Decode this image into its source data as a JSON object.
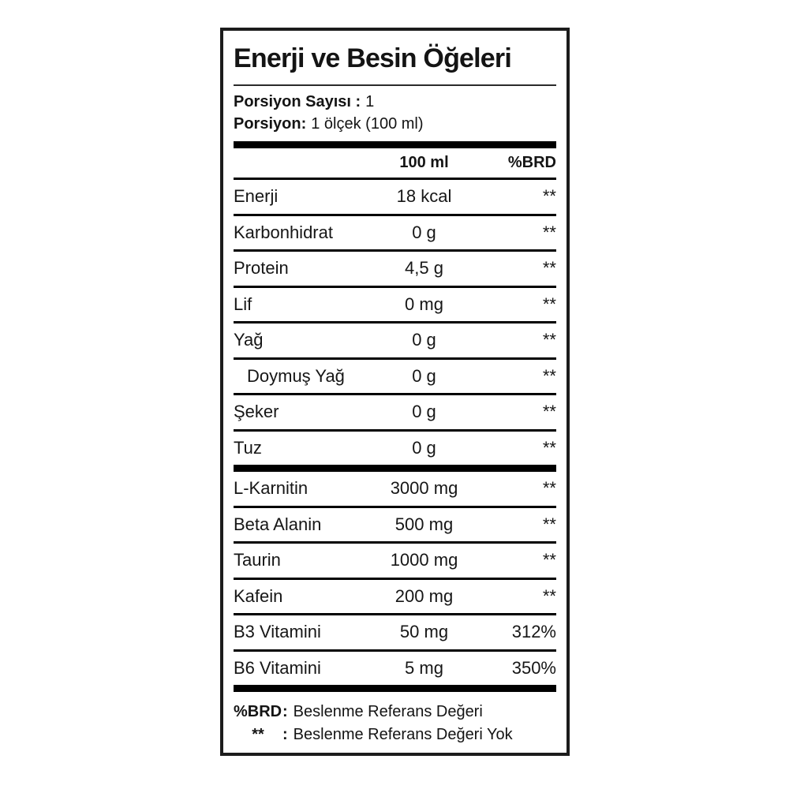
{
  "label": {
    "title": "Enerji ve Besin Öğeleri",
    "serving": {
      "count_label": "Porsiyon Sayısı :",
      "count_value": "1",
      "size_label": "Porsiyon:",
      "size_value": "1 ölçek (100 ml)"
    },
    "columns": {
      "amount_header": "100 ml",
      "brd_header": "%BRD"
    },
    "nutrients": [
      {
        "name": "Enerji",
        "amount": "18 kcal",
        "brd": "**",
        "indent": false
      },
      {
        "name": "Karbonhidrat",
        "amount": "0 g",
        "brd": "**",
        "indent": false
      },
      {
        "name": "Protein",
        "amount": "4,5 g",
        "brd": "**",
        "indent": false
      },
      {
        "name": "Lif",
        "amount": "0 mg",
        "brd": "**",
        "indent": false
      },
      {
        "name": "Yağ",
        "amount": "0 g",
        "brd": "**",
        "indent": false
      },
      {
        "name": "Doymuş Yağ",
        "amount": "0 g",
        "brd": "**",
        "indent": true
      },
      {
        "name": "Şeker",
        "amount": "0 g",
        "brd": "**",
        "indent": false
      },
      {
        "name": "Tuz",
        "amount": "0 g",
        "brd": "**",
        "indent": false
      }
    ],
    "actives": [
      {
        "name": "L-Karnitin",
        "amount": "3000 mg",
        "brd": "**",
        "indent": false
      },
      {
        "name": "Beta Alanin",
        "amount": "500 mg",
        "brd": "**",
        "indent": false
      },
      {
        "name": "Taurin",
        "amount": "1000 mg",
        "brd": "**",
        "indent": false
      },
      {
        "name": "Kafein",
        "amount": "200 mg",
        "brd": "**",
        "indent": false
      },
      {
        "name": "B3 Vitamini",
        "amount": "50 mg",
        "brd": "312%",
        "indent": false
      },
      {
        "name": "B6 Vitamini",
        "amount": "5 mg",
        "brd": "350%",
        "indent": false
      }
    ],
    "footnotes": [
      {
        "term": "%BRD",
        "sep": ":",
        "text": "Beslenme Referans Değeri"
      },
      {
        "term": "**",
        "sep": ":",
        "text": "Beslenme Referans Değeri Yok"
      }
    ],
    "colors": {
      "text": "#141414",
      "line": "#000000",
      "border": "#1c1c1c",
      "background": "#ffffff"
    }
  }
}
